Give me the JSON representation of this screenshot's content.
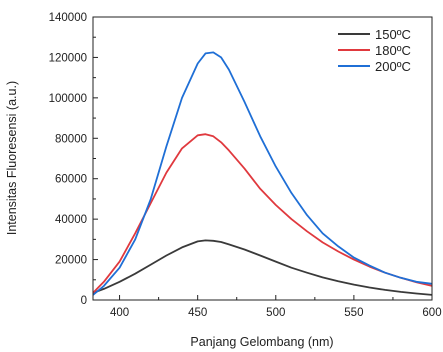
{
  "chart_data": {
    "type": "line",
    "xlabel": "Panjang Gelombang (nm)",
    "ylabel": "Intensitas Fluoresensi (a.u.)",
    "xlim": [
      383,
      600
    ],
    "ylim": [
      0,
      140000
    ],
    "x_ticks": [
      400,
      450,
      500,
      550,
      600
    ],
    "y_ticks": [
      0,
      20000,
      40000,
      60000,
      80000,
      100000,
      120000,
      140000
    ],
    "legend_position": "top-right",
    "grid": false,
    "x": [
      383,
      390,
      400,
      410,
      420,
      430,
      440,
      450,
      455,
      460,
      465,
      470,
      480,
      490,
      500,
      510,
      520,
      530,
      540,
      550,
      560,
      570,
      580,
      590,
      600
    ],
    "series": [
      {
        "name": "150ºC",
        "color": "#3a3a3a",
        "values": [
          3500,
          5500,
          9000,
          13000,
          17500,
          22000,
          26000,
          29000,
          29500,
          29300,
          28700,
          27500,
          25000,
          22000,
          19000,
          16000,
          13500,
          11200,
          9300,
          7600,
          6200,
          5000,
          4000,
          3200,
          2500
        ]
      },
      {
        "name": "180ºC",
        "color": "#e0393e",
        "values": [
          3500,
          9000,
          19000,
          33000,
          48000,
          63000,
          75000,
          81500,
          82000,
          81000,
          78000,
          74000,
          65000,
          55000,
          47000,
          40000,
          34000,
          28500,
          24000,
          20000,
          16500,
          13500,
          11000,
          8800,
          7000
        ]
      },
      {
        "name": "200ºC",
        "color": "#1f6fd6",
        "values": [
          2500,
          7000,
          16000,
          30000,
          50000,
          76000,
          100000,
          117000,
          122000,
          122500,
          120000,
          114000,
          98000,
          81000,
          66000,
          53000,
          42000,
          33000,
          26500,
          21000,
          17000,
          13500,
          11000,
          9000,
          8000
        ]
      }
    ]
  }
}
